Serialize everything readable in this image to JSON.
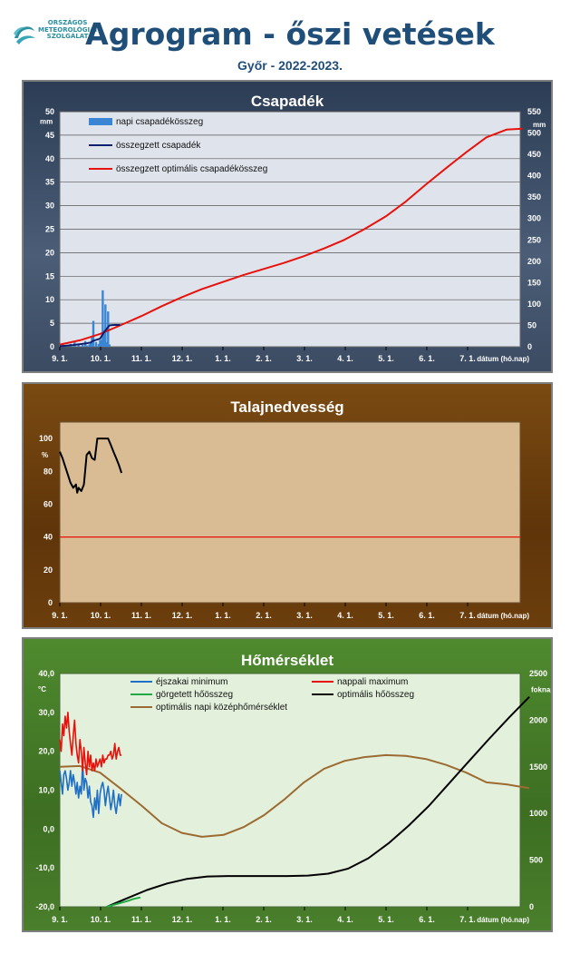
{
  "header": {
    "logo_lines": [
      "ORSZÁGOS",
      "METEOROLÓGIAI",
      "SZOLGÁLAT"
    ],
    "title": "Agrogram - őszi vetések",
    "subtitle": "Győr - 2022-2023."
  },
  "colors": {
    "precip_panel": "#3b4b62",
    "precip_plot": "#dfe4ec",
    "soil_panel": "#6a3d0c",
    "soil_plot": "#d9bc94",
    "temp_panel": "#437a27",
    "temp_plot": "#e3f0dc",
    "red": "#e8120c",
    "navy": "#0f1f6b",
    "blue_bar": "#3a86d4",
    "brown": "#9c6b32",
    "green": "#22aa44",
    "night_blue": "#1f6fc4"
  },
  "chart_data": [
    {
      "type": "bar",
      "title": "Csapadék",
      "ylabel": "mm",
      "y2label": "mm",
      "xlabel": "dátum (hó.nap)",
      "x_ticks": [
        "9. 1.",
        "10. 1.",
        "11. 1.",
        "12. 1.",
        "1. 1.",
        "2. 1.",
        "3. 1.",
        "4. 1.",
        "5. 1.",
        "6. 1.",
        "7. 1."
      ],
      "ylim": [
        0,
        50
      ],
      "y_ticks": [
        0,
        5,
        10,
        15,
        20,
        25,
        30,
        35,
        40,
        45,
        50
      ],
      "y2lim": [
        0,
        550
      ],
      "y2_ticks": [
        0,
        50,
        100,
        150,
        200,
        250,
        300,
        350,
        400,
        450,
        500,
        550
      ],
      "legend": [
        "napi csapadékösszeg",
        "összegzett csapadék",
        "összegzett optimális  csapadékösszeg"
      ],
      "daily_precip": {
        "day": [
          2,
          5,
          8,
          11,
          14,
          17,
          19,
          20,
          22,
          23,
          24,
          25,
          27,
          29,
          30,
          31,
          32,
          33,
          34,
          35,
          36,
          37
        ],
        "mm": [
          0.5,
          0.3,
          0.6,
          1.0,
          0.5,
          0.4,
          1.2,
          0.3,
          0.5,
          0.8,
          2.0,
          5.5,
          1.0,
          0.6,
          1.4,
          1.5,
          12.0,
          3.5,
          9.0,
          1.0,
          7.5,
          0.5
        ]
      },
      "cumulative_precip": {
        "day": [
          0,
          10,
          20,
          23,
          25,
          30,
          33,
          37,
          40,
          45
        ],
        "mm": [
          1,
          4,
          8,
          10,
          14,
          19,
          34,
          50,
          51,
          51
        ]
      },
      "optimal_cumulative": {
        "day": [
          0,
          15,
          30,
          45,
          61,
          76,
          91,
          106,
          122,
          137,
          152,
          167,
          182,
          197,
          212,
          227,
          243,
          258,
          273,
          288,
          303,
          318,
          333,
          345
        ],
        "mm": [
          5,
          15,
          30,
          50,
          72,
          95,
          116,
          135,
          152,
          168,
          182,
          196,
          212,
          230,
          250,
          275,
          305,
          340,
          380,
          418,
          455,
          490,
          508,
          510
        ]
      }
    },
    {
      "type": "line",
      "title": "Talajnedvesség",
      "ylabel": "%",
      "xlabel": "dátum (hó.nap)",
      "x_ticks": [
        "9. 1.",
        "10. 1.",
        "11. 1.",
        "12. 1.",
        "1. 1.",
        "2. 1.",
        "3. 1.",
        "4. 1.",
        "5. 1.",
        "6. 1.",
        "7. 1."
      ],
      "ylim": [
        0,
        110
      ],
      "y_ticks": [
        0,
        20,
        40,
        60,
        80,
        100
      ],
      "threshold": 40,
      "soil_moisture": {
        "day": [
          0,
          2,
          4,
          6,
          8,
          10,
          12,
          13,
          14,
          16,
          18,
          20,
          22,
          24,
          26,
          28,
          30,
          32,
          34,
          36,
          38,
          40,
          42,
          44,
          46
        ],
        "pct": [
          92,
          88,
          83,
          78,
          73,
          70,
          72,
          67,
          70,
          68,
          72,
          90,
          92,
          88,
          87,
          100,
          100,
          100,
          100,
          100,
          96,
          92,
          88,
          84,
          79
        ]
      }
    },
    {
      "type": "line",
      "title": "Hőmérséklet",
      "ylabel": "°C",
      "y2label": "foknap",
      "xlabel": "dátum (hó.nap)",
      "x_ticks": [
        "9. 1.",
        "10. 1.",
        "11. 1.",
        "12. 1.",
        "1. 1.",
        "2. 1.",
        "3. 1.",
        "4. 1.",
        "5. 1.",
        "6. 1.",
        "7. 1."
      ],
      "ylim": [
        -20,
        40
      ],
      "y_ticks": [
        "-20,0",
        "-10,0",
        "0,0",
        "10,0",
        "20,0",
        "30,0",
        "40,0"
      ],
      "y2lim": [
        0,
        2500
      ],
      "y2_ticks": [
        0,
        500,
        1000,
        1500,
        2000,
        2500
      ],
      "legend": [
        "éjszakai minimum",
        "nappali maximum",
        "görgetett hőösszeg",
        "optimális hőösszeg",
        "optimális napi középhőmérséklet"
      ],
      "night_min": {
        "day": [
          0,
          1,
          2,
          3,
          4,
          5,
          6,
          7,
          8,
          9,
          10,
          11,
          12,
          13,
          14,
          15,
          16,
          17,
          18,
          19,
          20,
          21,
          22,
          23,
          24,
          25,
          26,
          27,
          28,
          29,
          30,
          31,
          32,
          33,
          34,
          35,
          36,
          37,
          38,
          39,
          40,
          41,
          42,
          43,
          44,
          45,
          46
        ],
        "celsius": [
          15,
          12,
          9,
          14,
          15,
          13,
          10,
          12,
          15,
          11,
          14,
          12,
          9,
          12,
          8,
          11,
          9,
          17,
          10,
          13,
          12,
          8,
          11,
          7,
          6,
          3,
          8,
          5,
          10,
          4,
          9,
          11,
          12,
          10,
          6,
          9,
          11,
          8,
          5,
          7,
          10,
          6,
          4,
          7,
          9,
          6,
          9
        ]
      },
      "day_max": {
        "day": [
          0,
          1,
          2,
          3,
          4,
          5,
          6,
          7,
          8,
          9,
          10,
          11,
          12,
          13,
          14,
          15,
          16,
          17,
          18,
          19,
          20,
          21,
          22,
          23,
          24,
          25,
          26,
          27,
          28,
          29,
          30,
          31,
          32,
          33,
          34,
          35,
          36,
          37,
          38,
          39,
          40,
          41,
          42,
          43,
          44,
          45,
          46
        ],
        "celsius": [
          23,
          20,
          27,
          24,
          29,
          26,
          30,
          25,
          22,
          19,
          24,
          28,
          22,
          19,
          17,
          23,
          20,
          15,
          21,
          17,
          14,
          20,
          16,
          19,
          15,
          17,
          15,
          18,
          16,
          17,
          18,
          16,
          19,
          17,
          18,
          18,
          19,
          19,
          20,
          18,
          19,
          22,
          18,
          20,
          21,
          19,
          19
        ]
      },
      "rolling_heat_sum": {
        "day": [
          35,
          40,
          45,
          50,
          55,
          60
        ],
        "foknap": [
          0,
          20,
          40,
          60,
          85,
          100
        ]
      },
      "optimal_heat_sum": {
        "day": [
          35,
          50,
          65,
          80,
          95,
          110,
          125,
          140,
          155,
          170,
          185,
          200,
          215,
          230,
          245,
          260,
          275,
          290,
          305,
          320,
          335,
          350
        ],
        "foknap": [
          0,
          90,
          180,
          250,
          300,
          325,
          330,
          330,
          330,
          330,
          335,
          355,
          410,
          520,
          680,
          870,
          1080,
          1320,
          1560,
          1800,
          2030,
          2250
        ]
      },
      "optimal_daily_mean": {
        "day": [
          0,
          15,
          30,
          45,
          61,
          76,
          91,
          106,
          122,
          137,
          152,
          167,
          182,
          197,
          212,
          227,
          243,
          258,
          273,
          288,
          303,
          318,
          333,
          350
        ],
        "celsius": [
          16,
          16.2,
          14.5,
          10.5,
          6,
          1.5,
          -1,
          -2,
          -1.5,
          0.5,
          3.5,
          7.5,
          12,
          15.5,
          17.5,
          18.5,
          19,
          18.8,
          18,
          16.5,
          14.5,
          12,
          11.5,
          10.5
        ]
      }
    }
  ]
}
